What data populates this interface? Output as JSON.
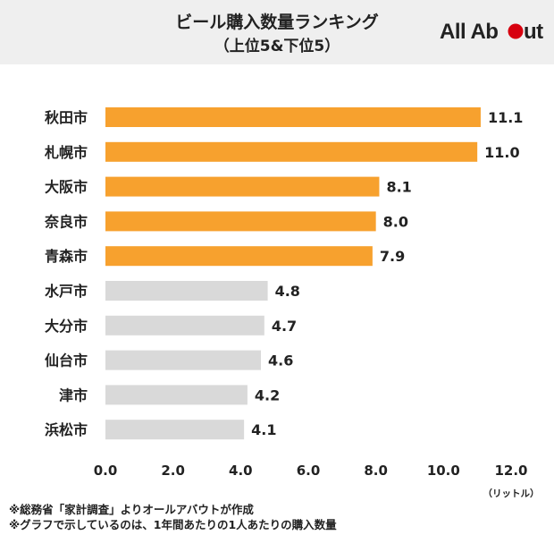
{
  "title": "ビール購入数量ランキング",
  "subtitle": "（上位5&下位5）",
  "logo_text": "All About",
  "unit_label": "（リットル）",
  "footnotes": [
    "※総務省「家計調査」よりオールアバウトが作成",
    "※グラフで示しているのは、1年間あたりの1人あたりの購入数量"
  ],
  "colors": {
    "top5": "#f7a12e",
    "bottom5": "#d9d9d9",
    "logo_red": "#d7000f"
  },
  "chart_data": {
    "type": "bar",
    "orientation": "horizontal",
    "title": "ビール購入数量ランキング",
    "subtitle": "（上位5&下位5）",
    "categories": [
      "秋田市",
      "札幌市",
      "大阪市",
      "奈良市",
      "青森市",
      "水戸市",
      "大分市",
      "仙台市",
      "津市",
      "浜松市"
    ],
    "values": [
      11.1,
      11.0,
      8.1,
      8.0,
      7.9,
      4.8,
      4.7,
      4.6,
      4.2,
      4.1
    ],
    "value_labels": [
      "11.1",
      "11.0",
      "8.1",
      "8.0",
      "7.9",
      "4.8",
      "4.7",
      "4.6",
      "4.2",
      "4.1"
    ],
    "groups": [
      "top5",
      "top5",
      "top5",
      "top5",
      "top5",
      "bottom5",
      "bottom5",
      "bottom5",
      "bottom5",
      "bottom5"
    ],
    "xlim": [
      0,
      12
    ],
    "xticks": [
      "0.0",
      "2.0",
      "4.0",
      "6.0",
      "8.0",
      "10.0",
      "12.0"
    ],
    "xlabel": "（リットル）",
    "grid": false,
    "legend": "none"
  }
}
